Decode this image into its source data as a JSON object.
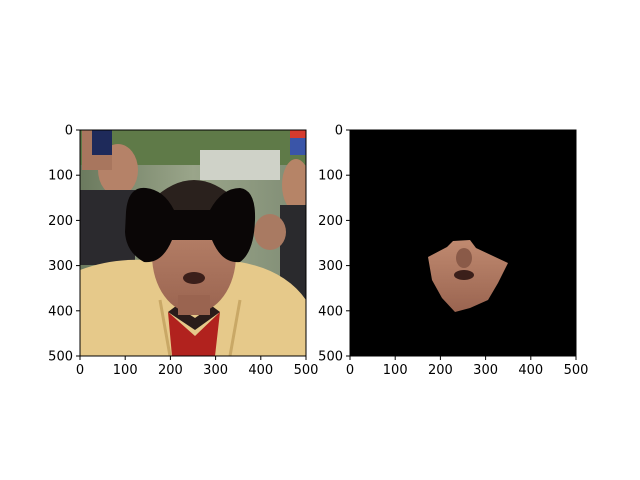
{
  "chart_data": [
    {
      "type": "image",
      "title": "",
      "xlabel": "",
      "ylabel": "",
      "xlim": [
        0,
        500
      ],
      "ylim": [
        500,
        0
      ],
      "xticks": [
        0,
        100,
        200,
        300,
        400,
        500
      ],
      "yticks": [
        0,
        100,
        200,
        300,
        400,
        500
      ],
      "content": "photo of a man in a crowd, eye region masked by a black bow-tie-shaped patch"
    },
    {
      "type": "image",
      "title": "",
      "xlabel": "",
      "ylabel": "",
      "xlim": [
        0,
        500
      ],
      "ylim": [
        500,
        0
      ],
      "xticks": [
        0,
        100,
        200,
        300,
        400,
        500
      ],
      "yticks": [
        0,
        100,
        200,
        300,
        400,
        500
      ],
      "content": "black background showing only the lower face region (nose and mouth) of the same man"
    }
  ],
  "colors": {
    "mask": "#0a0606",
    "background_black": "#000000",
    "shirt": "#e6c98a",
    "skin": "#b07a62"
  }
}
